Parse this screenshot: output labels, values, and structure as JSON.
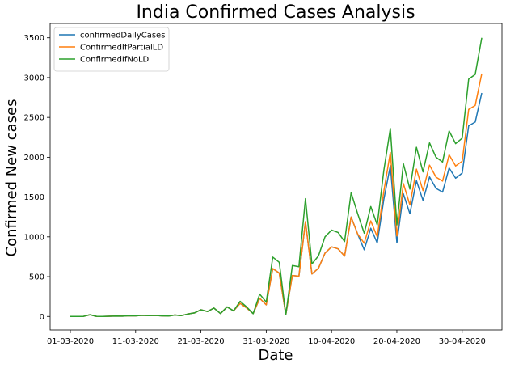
{
  "chart_data": {
    "type": "line",
    "title": "India Confirmed Cases Analysis",
    "xlabel": "Date",
    "ylabel": "Confirmed New cases",
    "x_start": "01-03-2020",
    "x_end": "03-05-2020",
    "xticks": [
      "01-03-2020",
      "11-03-2020",
      "21-03-2020",
      "31-03-2020",
      "10-04-2020",
      "20-04-2020",
      "30-04-2020"
    ],
    "yticks": [
      0,
      500,
      1000,
      1500,
      2000,
      2500,
      3000,
      3500
    ],
    "ylim": [
      -170,
      3680
    ],
    "grid": false,
    "legend_position": "top-left",
    "series": [
      {
        "name": "confirmedDailyCases",
        "color": "#1f77b4",
        "values": [
          1,
          0,
          1,
          22,
          2,
          1,
          3,
          5,
          4,
          9,
          8,
          14,
          11,
          13,
          8,
          5,
          18,
          11,
          30,
          44,
          84,
          62,
          105,
          36,
          120,
          71,
          164,
          107,
          35,
          227,
          146,
          601,
          545,
          24,
          515,
          506,
          1190,
          533,
          606,
          796,
          874,
          849,
          758,
          1248,
          1035,
          838,
          1108,
          922,
          1466,
          1893,
          924,
          1541,
          1290,
          1705,
          1457,
          1752,
          1609,
          1562,
          1865,
          1737,
          1801,
          2394,
          2442,
          2806
        ]
      },
      {
        "name": "ConfirmedIfPartialLD",
        "color": "#ff7f0e",
        "values": [
          1,
          0,
          1,
          22,
          2,
          1,
          3,
          5,
          4,
          9,
          8,
          14,
          11,
          13,
          8,
          5,
          18,
          11,
          30,
          44,
          84,
          62,
          105,
          36,
          120,
          71,
          164,
          107,
          35,
          227,
          146,
          601,
          545,
          24,
          515,
          506,
          1190,
          533,
          606,
          796,
          874,
          849,
          758,
          1248,
          1035,
          920,
          1200,
          1000,
          1570,
          2060,
          1010,
          1670,
          1400,
          1850,
          1580,
          1900,
          1750,
          1700,
          2030,
          1890,
          1950,
          2600,
          2650,
          3050
        ]
      },
      {
        "name": "ConfirmedIfNoLD",
        "color": "#2ca02c",
        "values": [
          1,
          0,
          1,
          22,
          2,
          1,
          3,
          5,
          4,
          9,
          8,
          14,
          11,
          13,
          8,
          5,
          18,
          11,
          30,
          44,
          84,
          62,
          105,
          36,
          120,
          71,
          190,
          120,
          35,
          280,
          180,
          745,
          680,
          24,
          640,
          625,
          1480,
          660,
          760,
          1000,
          1085,
          1055,
          940,
          1555,
          1290,
          1045,
          1380,
          1150,
          1830,
          2360,
          1150,
          1920,
          1600,
          2125,
          1815,
          2180,
          2000,
          1940,
          2330,
          2170,
          2240,
          2980,
          3040,
          3500
        ]
      }
    ]
  }
}
